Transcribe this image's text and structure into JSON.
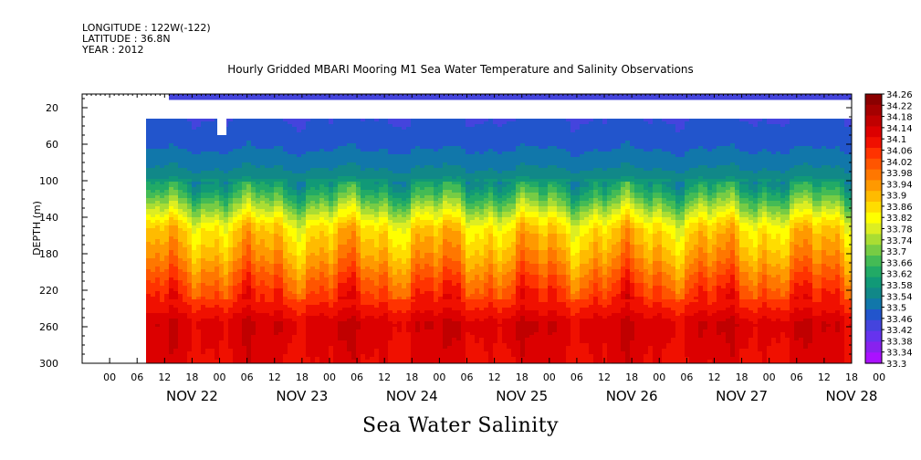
{
  "header": {
    "longitude": "LONGITUDE : 122W(-122)",
    "latitude": "LATITUDE : 36.8N",
    "year": "YEAR : 2012"
  },
  "title": "Hourly Gridded MBARI Mooring M1 Sea Water Temperature and Salinity Observations",
  "bottom_title": "Sea Water Salinity",
  "chart_data": {
    "type": "heatmap",
    "title": "Hourly Gridded MBARI Mooring M1 Sea Water Temperature and Salinity Observations",
    "xlabel": "",
    "ylabel": "DEPTH (m)",
    "variable": "Sea Water Salinity",
    "y_ticks": [
      20,
      60,
      100,
      140,
      180,
      220,
      260,
      300
    ],
    "y_range": [
      300,
      5
    ],
    "x_hour_ticks": [
      "00",
      "06",
      "12",
      "18",
      "00",
      "06",
      "12",
      "18",
      "00",
      "06",
      "12",
      "18",
      "00",
      "06",
      "12",
      "18",
      "00",
      "06",
      "12",
      "18",
      "00",
      "06",
      "12",
      "18",
      "00",
      "06",
      "12",
      "18",
      "00"
    ],
    "x_days": [
      "NOV 22",
      "NOV 23",
      "NOV 24",
      "NOV 25",
      "NOV 26",
      "NOV 27",
      "NOV 28"
    ],
    "x_range_hours": [
      -12,
      156
    ],
    "data_start_hour": 2,
    "colorbar_levels": [
      34.26,
      34.22,
      34.18,
      34.14,
      34.1,
      34.06,
      34.02,
      33.98,
      33.94,
      33.9,
      33.86,
      33.82,
      33.78,
      33.74,
      33.7,
      33.66,
      33.62,
      33.58,
      33.54,
      33.5,
      33.46,
      33.42,
      33.38,
      33.34,
      33.3
    ],
    "colors": [
      "#8b0000",
      "#a50000",
      "#c00000",
      "#dc0000",
      "#f01000",
      "#ff3300",
      "#ff5500",
      "#ff7700",
      "#ff9900",
      "#ffbb00",
      "#ffdd00",
      "#ffff00",
      "#ddee22",
      "#aadd33",
      "#77cc44",
      "#44bb55",
      "#22aa66",
      "#119977",
      "#118888",
      "#1177aa",
      "#2255cc",
      "#4444dd",
      "#6633ee",
      "#8822ee",
      "#aa11ff"
    ],
    "depth_profile": [
      {
        "depth": 10,
        "value": 33.44
      },
      {
        "depth": 40,
        "value": 33.47
      },
      {
        "depth": 60,
        "value": 33.49
      },
      {
        "depth": 90,
        "value": 33.55
      },
      {
        "depth": 110,
        "value": 33.64
      },
      {
        "depth": 130,
        "value": 33.76
      },
      {
        "depth": 150,
        "value": 33.88
      },
      {
        "depth": 180,
        "value": 33.95
      },
      {
        "depth": 210,
        "value": 34.04
      },
      {
        "depth": 240,
        "value": 34.12
      },
      {
        "depth": 255,
        "value": 34.17
      },
      {
        "depth": 300,
        "value": 34.14
      }
    ]
  }
}
